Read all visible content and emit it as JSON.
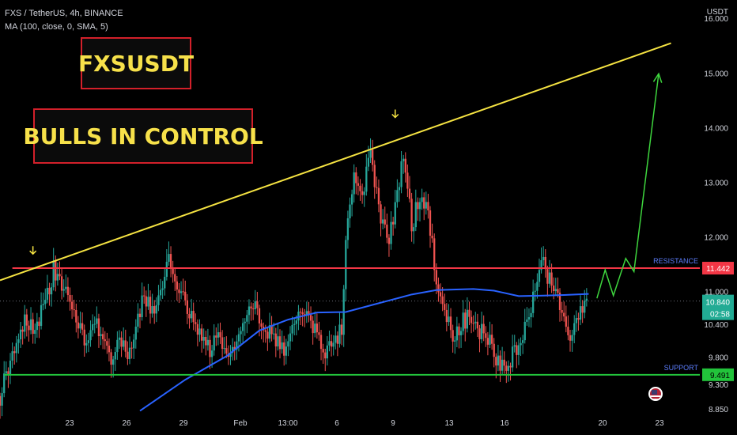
{
  "header": {
    "symbol_line": "FXS / TetherUS, 4h, BINANCE",
    "indicator_line": "MA (100, close, 0, SMA, 5)",
    "currency": "USDT"
  },
  "banners": {
    "title": "FXSUSDT",
    "subtitle": "BULLS IN CONTROL"
  },
  "annotations": {
    "resistance_label": "RESISTANCE",
    "support_label": "SUPPORT"
  },
  "colors": {
    "background": "#000000",
    "bull": "#26a69a",
    "bear": "#ef5350",
    "ma": "#2962ff",
    "trendline": "#f5e342",
    "resistance": "#f23645",
    "support": "#22c33b",
    "projection": "#3ed63e",
    "banner_text": "#f7e14a",
    "banner_border": "#d3202a"
  },
  "chart_data": {
    "type": "line",
    "x_ticks": [
      "23",
      "26",
      "29",
      "Feb",
      "13:00",
      "6",
      "9",
      "13",
      "16",
      "20",
      "23"
    ],
    "y_ticks": [
      "16.000",
      "15.000",
      "14.000",
      "13.000",
      "12.000",
      "11.000",
      "10.400",
      "9.800",
      "9.300",
      "8.850"
    ],
    "price_badges": {
      "resistance": "11.442",
      "current": "10.840",
      "countdown": "02:58",
      "support": "9.491"
    },
    "levels": {
      "resistance": 11.442,
      "support": 9.491,
      "last_price": 10.84
    },
    "price_series": [
      [
        0,
        9.1
      ],
      [
        3,
        9.9
      ],
      [
        6,
        10.55
      ],
      [
        8,
        10.3
      ],
      [
        11,
        10.75
      ],
      [
        13,
        11.4
      ],
      [
        15,
        11.05
      ],
      [
        17,
        10.85
      ],
      [
        19,
        10.4
      ],
      [
        21,
        10.05
      ],
      [
        23,
        10.45
      ],
      [
        25,
        10.2
      ],
      [
        27,
        9.85
      ],
      [
        29,
        10.2
      ],
      [
        31,
        9.7
      ],
      [
        33,
        10.4
      ],
      [
        35,
        10.9
      ],
      [
        37,
        10.6
      ],
      [
        39,
        10.95
      ],
      [
        41,
        11.55
      ],
      [
        43,
        11.15
      ],
      [
        45,
        10.75
      ],
      [
        47,
        10.45
      ],
      [
        49,
        10.25
      ],
      [
        51,
        9.95
      ],
      [
        53,
        10.25
      ],
      [
        55,
        9.75
      ],
      [
        57,
        10.05
      ],
      [
        59,
        10.55
      ],
      [
        61,
        10.85
      ],
      [
        63,
        10.6
      ],
      [
        65,
        10.3
      ],
      [
        67,
        10.1
      ],
      [
        69,
        9.9
      ],
      [
        71,
        10.4
      ],
      [
        73,
        10.8
      ],
      [
        75,
        10.55
      ],
      [
        77,
        10.2
      ],
      [
        79,
        9.95
      ],
      [
        81,
        10.1
      ],
      [
        83,
        10.3
      ],
      [
        84,
        12.1
      ],
      [
        86,
        13.2
      ],
      [
        88,
        12.8
      ],
      [
        90,
        13.5
      ],
      [
        92,
        12.6
      ],
      [
        94,
        11.9
      ],
      [
        96,
        12.5
      ],
      [
        98,
        13.6
      ],
      [
        100,
        12.2
      ],
      [
        102,
        12.8
      ],
      [
        104,
        12.5
      ],
      [
        106,
        11.2
      ],
      [
        108,
        10.6
      ],
      [
        110,
        10.2
      ],
      [
        112,
        10.45
      ],
      [
        114,
        10.55
      ],
      [
        116,
        10.35
      ],
      [
        118,
        10.2
      ],
      [
        120,
        9.9
      ],
      [
        122,
        9.6
      ],
      [
        124,
        9.8
      ],
      [
        126,
        10.1
      ],
      [
        128,
        10.35
      ],
      [
        130,
        11.05
      ],
      [
        132,
        11.55
      ],
      [
        134,
        11.1
      ],
      [
        136,
        10.8
      ],
      [
        138,
        10.1
      ],
      [
        140,
        10.55
      ],
      [
        142,
        10.75
      ],
      [
        143,
        10.84
      ]
    ],
    "ma_series": [
      [
        34,
        8.83
      ],
      [
        45,
        9.4
      ],
      [
        55,
        9.83
      ],
      [
        63,
        10.3
      ],
      [
        70,
        10.5
      ],
      [
        77,
        10.63
      ],
      [
        84,
        10.64
      ],
      [
        92,
        10.8
      ],
      [
        100,
        10.96
      ],
      [
        106,
        11.04
      ],
      [
        115,
        11.06
      ],
      [
        120,
        11.03
      ],
      [
        126,
        10.93
      ],
      [
        132,
        10.94
      ],
      [
        137,
        10.95
      ],
      [
        143,
        10.97
      ]
    ],
    "trendline": {
      "from": [
        0,
        11.22
      ],
      "to": [
        163,
        15.56
      ]
    },
    "projection_path": [
      [
        145,
        10.89
      ],
      [
        147,
        11.41
      ],
      [
        149,
        10.94
      ],
      [
        152,
        11.62
      ],
      [
        154,
        11.38
      ],
      [
        160,
        15.0
      ]
    ],
    "peak_markers": [
      [
        8,
        11.7
      ],
      [
        96,
        14.2
      ]
    ],
    "x_range": [
      0,
      170
    ],
    "y_range": [
      8.75,
      16.35
    ],
    "legend": "none",
    "grid": false
  }
}
